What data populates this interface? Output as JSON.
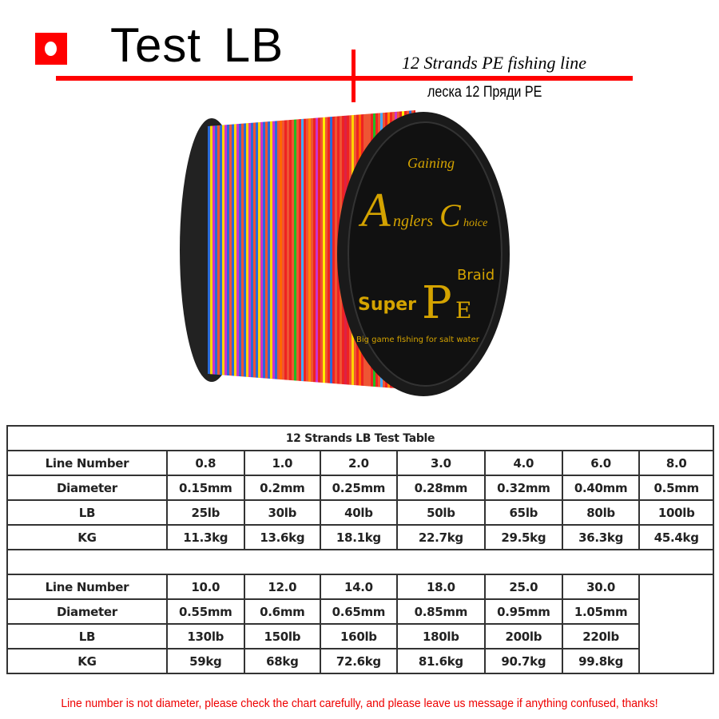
{
  "header": {
    "title": "Test LB",
    "subtitle_en": "12 Strands PE fishing line",
    "subtitle_ru": "леска 12 Пряди PE",
    "accent_color": "#ff0000",
    "bullet_icon": "red-square-bullet"
  },
  "product": {
    "logo_text": [
      "Gaining",
      "Anglers Choice",
      "Super PE Braid",
      "Big game fishing for salt water"
    ]
  },
  "table": {
    "title": "12 Strands LB Test Table",
    "row_labels": [
      "Line Number",
      "Diameter",
      "LB",
      "KG"
    ],
    "part1": {
      "line_number": [
        "0.8",
        "1.0",
        "2.0",
        "3.0",
        "4.0",
        "6.0",
        "8.0"
      ],
      "diameter": [
        "0.15mm",
        "0.2mm",
        "0.25mm",
        "0.28mm",
        "0.32mm",
        "0.40mm",
        "0.5mm"
      ],
      "lb": [
        "25lb",
        "30lb",
        "40lb",
        "50lb",
        "65lb",
        "80lb",
        "100lb"
      ],
      "kg": [
        "11.3kg",
        "13.6kg",
        "18.1kg",
        "22.7kg",
        "29.5kg",
        "36.3kg",
        "45.4kg"
      ]
    },
    "part2": {
      "line_number": [
        "10.0",
        "12.0",
        "14.0",
        "18.0",
        "25.0",
        "30.0"
      ],
      "diameter": [
        "0.55mm",
        "0.6mm",
        "0.65mm",
        "0.85mm",
        "0.95mm",
        "1.05mm"
      ],
      "lb": [
        "130lb",
        "150lb",
        "160lb",
        "180lb",
        "200lb",
        "220lb"
      ],
      "kg": [
        "59kg",
        "68kg",
        "72.6kg",
        "81.6kg",
        "90.7kg",
        "99.8kg"
      ]
    }
  },
  "note": "Line number is not diameter, please check the chart carefully, and please leave us message if anything confused, thanks!"
}
